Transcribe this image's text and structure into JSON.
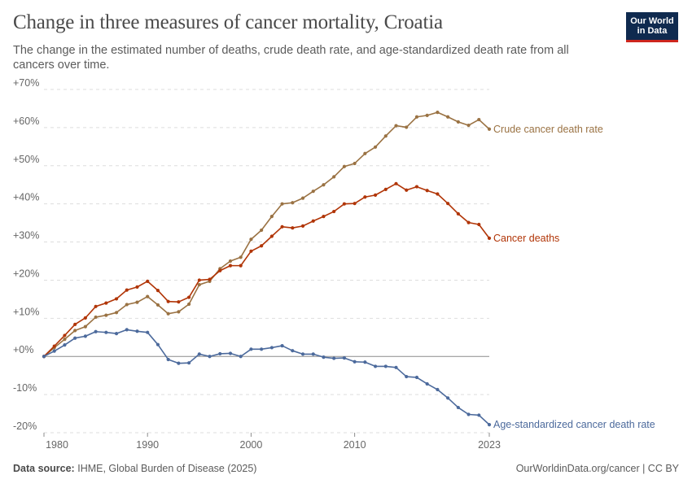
{
  "header": {
    "title": "Change in three measures of cancer mortality, Croatia",
    "subtitle": "The change in the estimated number of deaths, crude death rate, and age-standardized death rate from all cancers over time."
  },
  "logo": {
    "line1": "Our World",
    "line2": "in Data",
    "bg_color": "#0f2a4f",
    "accent_color": "#ce261e"
  },
  "footer": {
    "source_label": "Data source:",
    "source_text": "IHME, Global Burden of Disease (2025)",
    "right_text": "OurWorldinData.org/cancer | CC BY"
  },
  "chart_data": {
    "type": "line",
    "title": "Change in three measures of cancer mortality, Croatia",
    "xlabel": "",
    "ylabel": "",
    "xlim": [
      1980,
      2023
    ],
    "ylim": [
      -20,
      70
    ],
    "x_ticks": [
      1980,
      1990,
      2000,
      2010,
      2023
    ],
    "x_tick_labels": [
      "1980",
      "1990",
      "2000",
      "2010",
      "2023"
    ],
    "y_ticks": [
      -20,
      -10,
      0,
      10,
      20,
      30,
      40,
      50,
      60,
      70
    ],
    "y_tick_labels": [
      "-20%",
      "-10%",
      "+0%",
      "+10%",
      "+20%",
      "+30%",
      "+40%",
      "+50%",
      "+60%",
      "+70%"
    ],
    "grid": "horizontal dashed",
    "legend": "labels at line ends (right)",
    "x": [
      1980,
      1981,
      1982,
      1983,
      1984,
      1985,
      1986,
      1987,
      1988,
      1989,
      1990,
      1991,
      1992,
      1993,
      1994,
      1995,
      1996,
      1997,
      1998,
      1999,
      2000,
      2001,
      2002,
      2003,
      2004,
      2005,
      2006,
      2007,
      2008,
      2009,
      2010,
      2011,
      2012,
      2013,
      2014,
      2015,
      2016,
      2017,
      2018,
      2019,
      2020,
      2021,
      2022,
      2023
    ],
    "series": [
      {
        "name": "Crude cancer death rate",
        "color": "#9a7243",
        "values": [
          0,
          2.3,
          4.5,
          6.8,
          7.8,
          10.3,
          10.8,
          11.5,
          13.6,
          14.2,
          15.7,
          13.5,
          11.2,
          11.7,
          13.7,
          18.8,
          19.7,
          23,
          25,
          26,
          30.7,
          33.1,
          36.7,
          40,
          40.3,
          41.5,
          43.3,
          45,
          47.1,
          49.8,
          50.6,
          53.2,
          54.9,
          57.8,
          60.5,
          60.1,
          62.8,
          63.2,
          64,
          62.8,
          61.5,
          60.6,
          62.1,
          59.6
        ]
      },
      {
        "name": "Cancer deaths",
        "color": "#b13507",
        "values": [
          0,
          2.7,
          5.5,
          8.4,
          10.1,
          13.1,
          14,
          15.1,
          17.4,
          18.2,
          19.7,
          17.3,
          14.4,
          14.3,
          15.5,
          20,
          20.2,
          22.5,
          23.8,
          23.8,
          27.6,
          29,
          31.5,
          34,
          33.7,
          34.2,
          35.5,
          36.7,
          38,
          40,
          40.1,
          41.8,
          42.3,
          43.8,
          45.3,
          43.6,
          44.5,
          43.5,
          42.6,
          40.1,
          37.4,
          35.1,
          34.6,
          31
        ]
      },
      {
        "name": "Age-standardized cancer death rate",
        "color": "#4c6a9c",
        "values": [
          0,
          1.4,
          3,
          4.8,
          5.3,
          6.5,
          6.3,
          6,
          7,
          6.6,
          6.3,
          3.1,
          -0.8,
          -1.8,
          -1.7,
          0.6,
          0,
          0.7,
          0.8,
          0,
          1.9,
          1.9,
          2.3,
          2.8,
          1.5,
          0.6,
          0.6,
          -0.2,
          -0.5,
          -0.4,
          -1.4,
          -1.5,
          -2.6,
          -2.6,
          -2.9,
          -5.3,
          -5.5,
          -7.2,
          -8.7,
          -10.9,
          -13.4,
          -15.2,
          -15.4,
          -17.9
        ]
      }
    ]
  }
}
